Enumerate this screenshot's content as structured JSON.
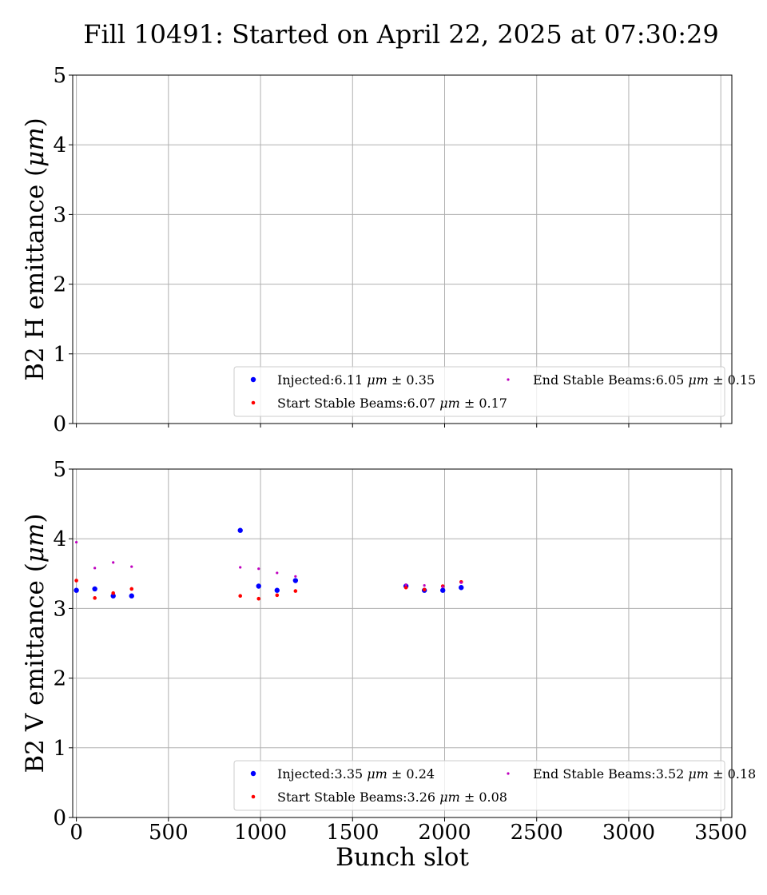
{
  "figure_title": "Fill 10491: Started on April 22, 2025 at 07:30:29",
  "colors": {
    "injected": "#0000ff",
    "start_stable": "#ff0000",
    "end_stable": "#bf00bf"
  },
  "chart_data": [
    {
      "type": "scatter",
      "ylabel": "B2 H emittance (μm)",
      "xlabel": "",
      "xlim": [
        -20,
        3560
      ],
      "ylim": [
        0,
        5
      ],
      "xticks": [
        0,
        500,
        1000,
        1500,
        2000,
        2500,
        3000,
        3500
      ],
      "xtick_labels_shown": false,
      "yticks": [
        0,
        1,
        2,
        3,
        4,
        5
      ],
      "grid": true,
      "legend_position": "lower-right",
      "series": [
        {
          "name": "Injected:6.11 μm ± 0.35",
          "color": "#0000ff",
          "x": [],
          "y": []
        },
        {
          "name": "Start Stable Beams:6.07 μm ± 0.17",
          "color": "#ff0000",
          "x": [],
          "y": []
        },
        {
          "name": "End Stable Beams:6.05 μm ± 0.15",
          "color": "#bf00bf",
          "x": [],
          "y": []
        }
      ]
    },
    {
      "type": "scatter",
      "ylabel": "B2 V emittance (μm)",
      "xlabel": "Bunch slot",
      "xlim": [
        -20,
        3560
      ],
      "ylim": [
        0,
        5
      ],
      "xticks": [
        0,
        500,
        1000,
        1500,
        2000,
        2500,
        3000,
        3500
      ],
      "xtick_labels_shown": true,
      "yticks": [
        0,
        1,
        2,
        3,
        4,
        5
      ],
      "grid": true,
      "legend_position": "lower-right",
      "series": [
        {
          "name": "Injected:3.35 μm ± 0.24",
          "color": "#0000ff",
          "x": [
            0,
            100,
            200,
            300,
            890,
            990,
            1090,
            1190,
            1790,
            1890,
            1990,
            2090
          ],
          "y": [
            3.26,
            3.28,
            3.18,
            3.18,
            4.12,
            3.32,
            3.26,
            3.4,
            3.32,
            3.26,
            3.26,
            3.3
          ]
        },
        {
          "name": "Start Stable Beams:3.26 μm ± 0.08",
          "color": "#ff0000",
          "x": [
            0,
            100,
            200,
            300,
            890,
            990,
            1090,
            1190,
            1790,
            1890,
            1990,
            2090
          ],
          "y": [
            3.4,
            3.15,
            3.22,
            3.28,
            3.18,
            3.14,
            3.19,
            3.25,
            3.3,
            3.27,
            3.32,
            3.38
          ]
        },
        {
          "name": "End Stable Beams:3.52 μm ± 0.18",
          "color": "#bf00bf",
          "x": [
            0,
            100,
            200,
            300,
            890,
            990,
            1090,
            1190,
            1790,
            1890,
            1990,
            2090
          ],
          "y": [
            3.95,
            3.58,
            3.66,
            3.6,
            3.59,
            3.57,
            3.51,
            3.46,
            3.34,
            3.33,
            3.31,
            3.37
          ]
        }
      ]
    }
  ]
}
